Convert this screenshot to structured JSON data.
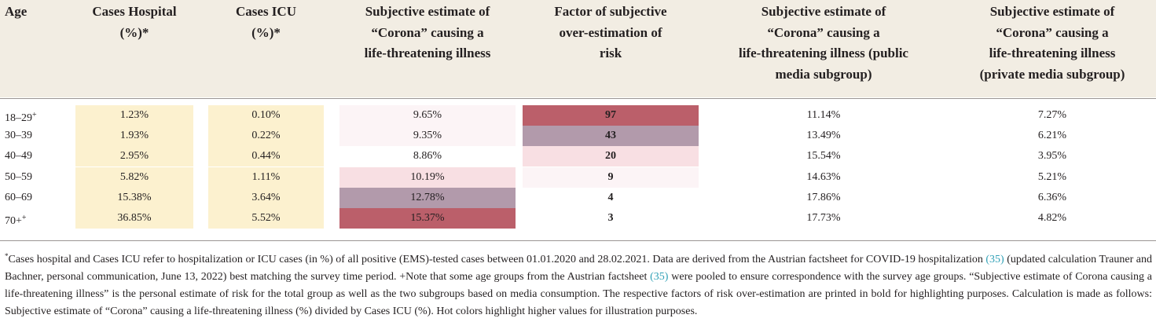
{
  "table": {
    "headers": {
      "age": [
        "Age"
      ],
      "hospital": [
        "Cases Hospital",
        "(%)*"
      ],
      "icu": [
        "Cases ICU",
        "(%)*"
      ],
      "subjective": [
        "Subjective estimate of",
        "“Corona” causing a",
        "life-threatening illness"
      ],
      "factor": [
        "Factor of subjective",
        "over-estimation of",
        "risk"
      ],
      "public": [
        "Subjective estimate of",
        "“Corona” causing a",
        "life-threatening illness (public",
        "media subgroup)"
      ],
      "private": [
        "Subjective estimate of",
        "“Corona” causing a",
        "life-threatening illness",
        "(private media subgroup)"
      ]
    },
    "rows": [
      {
        "age": "18–29",
        "age_mark": "+",
        "hospital": "1.23%",
        "icu": "0.10%",
        "subjective": "9.65%",
        "factor": "97",
        "public": "11.14%",
        "private": "7.27%"
      },
      {
        "age": "30–39",
        "age_mark": "",
        "hospital": "1.93%",
        "icu": "0.22%",
        "subjective": "9.35%",
        "factor": "43",
        "public": "13.49%",
        "private": "6.21%"
      },
      {
        "age": "40–49",
        "age_mark": "",
        "hospital": "2.95%",
        "icu": "0.44%",
        "subjective": "8.86%",
        "factor": "20",
        "public": "15.54%",
        "private": "3.95%"
      },
      {
        "age": "50–59",
        "age_mark": "",
        "hospital": "5.82%",
        "icu": "1.11%",
        "subjective": "10.19%",
        "factor": "9",
        "public": "14.63%",
        "private": "5.21%"
      },
      {
        "age": "60–69",
        "age_mark": "",
        "hospital": "15.38%",
        "icu": "3.64%",
        "subjective": "12.78%",
        "factor": "4",
        "public": "17.86%",
        "private": "6.36%"
      },
      {
        "age": "70+",
        "age_mark": "+",
        "hospital": "36.85%",
        "icu": "5.52%",
        "subjective": "15.37%",
        "factor": "3",
        "public": "17.73%",
        "private": "4.82%"
      }
    ]
  },
  "colors": {
    "header_bg": "#f2ede3",
    "cases_bg": "#fcf1cf",
    "heat_strong": "#bb5f6a",
    "heat_purple": "#b29aab",
    "heat_pink": "#f8dfe3",
    "heat_faint": "#fcf4f6",
    "heat_none": "#ffffff",
    "link": "#2fa0b6"
  },
  "heat": {
    "subjective": [
      "heat_faint",
      "heat_faint",
      "heat_none",
      "heat_pink",
      "heat_purple",
      "heat_strong"
    ],
    "factor": [
      "heat_strong",
      "heat_purple",
      "heat_pink",
      "heat_faint",
      "heat_none",
      "heat_none"
    ]
  },
  "footnote": {
    "mark": "*",
    "p1": "Cases hospital and Cases ICU refer to hospitalization or ICU cases (in %) of all positive (EMS)-tested cases between 01.01.2020 and 28.02.2021. Data are derived from the Austrian factsheet for COVID-19 hospitalization ",
    "ref1": "(35)",
    "p2": " (updated calculation Trauner and Bachner, personal communication, June 13, 2022) best matching the survey time period. +Note that some age groups from the Austrian factsheet ",
    "ref2": "(35)",
    "p3": " were pooled to ensure correspondence with the survey age groups. “Subjective estimate of Corona causing a life-threatening illness” is the personal estimate of risk for the total group as well as the two subgroups based on media consumption. The respective factors of risk over-estimation are printed in bold for highlighting purposes. Calculation is made as follows: Subjective estimate of “Corona” causing a life-threatening illness (%) divided by Cases ICU (%). Hot colors highlight higher values for illustration purposes."
  }
}
